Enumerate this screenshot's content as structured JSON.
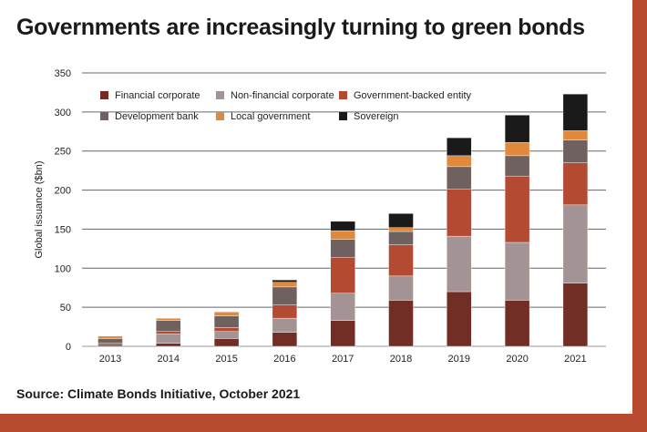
{
  "title": "Governments are increasingly turning to green bonds",
  "source": "Source: Climate Bonds Initiative, October 2021",
  "chart_data": {
    "type": "bar",
    "stacked": true,
    "title": "Governments are increasingly turning to green bonds",
    "xlabel": "",
    "ylabel": "Global issuance ($bn)",
    "ylim": [
      0,
      350
    ],
    "yticks": [
      0,
      50,
      100,
      150,
      200,
      250,
      300,
      350
    ],
    "grid": true,
    "legend_position": "top-left",
    "categories": [
      "2013",
      "2014",
      "2015",
      "2016",
      "2017",
      "2018",
      "2019",
      "2020",
      "2021"
    ],
    "series": [
      {
        "name": "Financial corporate",
        "color": "#722e25",
        "values": [
          2,
          4,
          10,
          18,
          33,
          59,
          70,
          59,
          81
        ]
      },
      {
        "name": "Non-financial corporate",
        "color": "#a39394",
        "values": [
          0,
          12,
          9,
          18,
          35,
          31,
          71,
          74,
          100
        ]
      },
      {
        "name": "Government-backed entity",
        "color": "#b54a33",
        "values": [
          2,
          3,
          5,
          17,
          46,
          40,
          60,
          85,
          54
        ]
      },
      {
        "name": "Development bank",
        "color": "#6e615f",
        "values": [
          6,
          14,
          15,
          23,
          23,
          17,
          29,
          26,
          29
        ]
      },
      {
        "name": "Local government",
        "color": "#e0883c",
        "values": [
          3,
          3,
          5,
          6,
          11,
          5,
          14,
          17,
          12
        ]
      },
      {
        "name": "Sovereign",
        "color": "#1a1a1a",
        "values": [
          0,
          0,
          0,
          3,
          12,
          18,
          23,
          35,
          47
        ]
      }
    ]
  }
}
